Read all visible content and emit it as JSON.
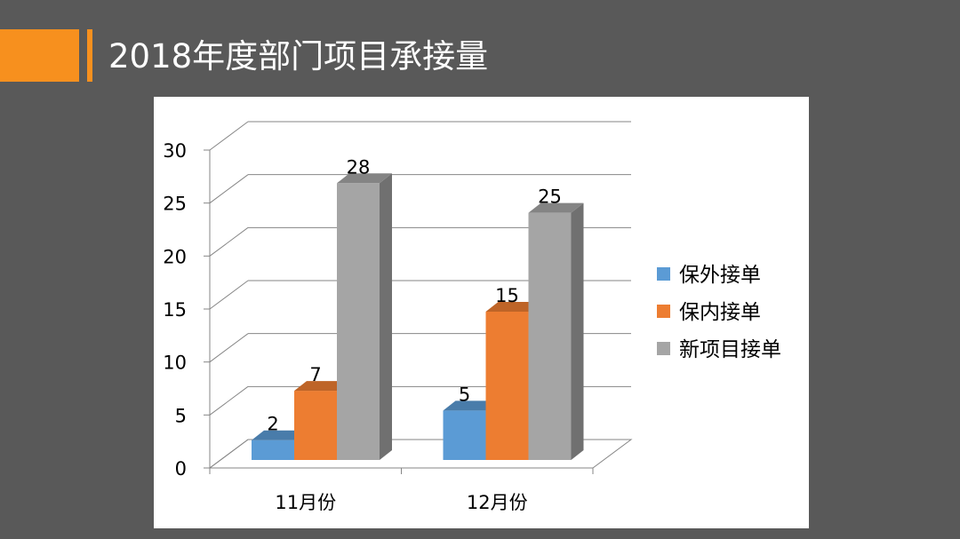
{
  "slide": {
    "title": "2018年度部门项目承接量"
  },
  "colors": {
    "background": "#595959",
    "accent": "#f7901e",
    "panel": "#ffffff"
  },
  "chart_data": {
    "type": "bar",
    "style": "3d-clustered-column",
    "title": "",
    "xlabel": "",
    "ylabel": "",
    "categories": [
      "11月份",
      "12月份"
    ],
    "series": [
      {
        "name": "保外接单",
        "values": [
          2,
          5
        ],
        "color": "#5b9bd5"
      },
      {
        "name": "保内接单",
        "values": [
          7,
          15
        ],
        "color": "#ed7d31"
      },
      {
        "name": "新项目接单",
        "values": [
          28,
          25
        ],
        "color": "#a5a5a5"
      }
    ],
    "ylim": [
      0,
      30
    ],
    "yticks": [
      0,
      5,
      10,
      15,
      20,
      25,
      30
    ],
    "grid": true,
    "data_labels": true,
    "legend_position": "right"
  }
}
